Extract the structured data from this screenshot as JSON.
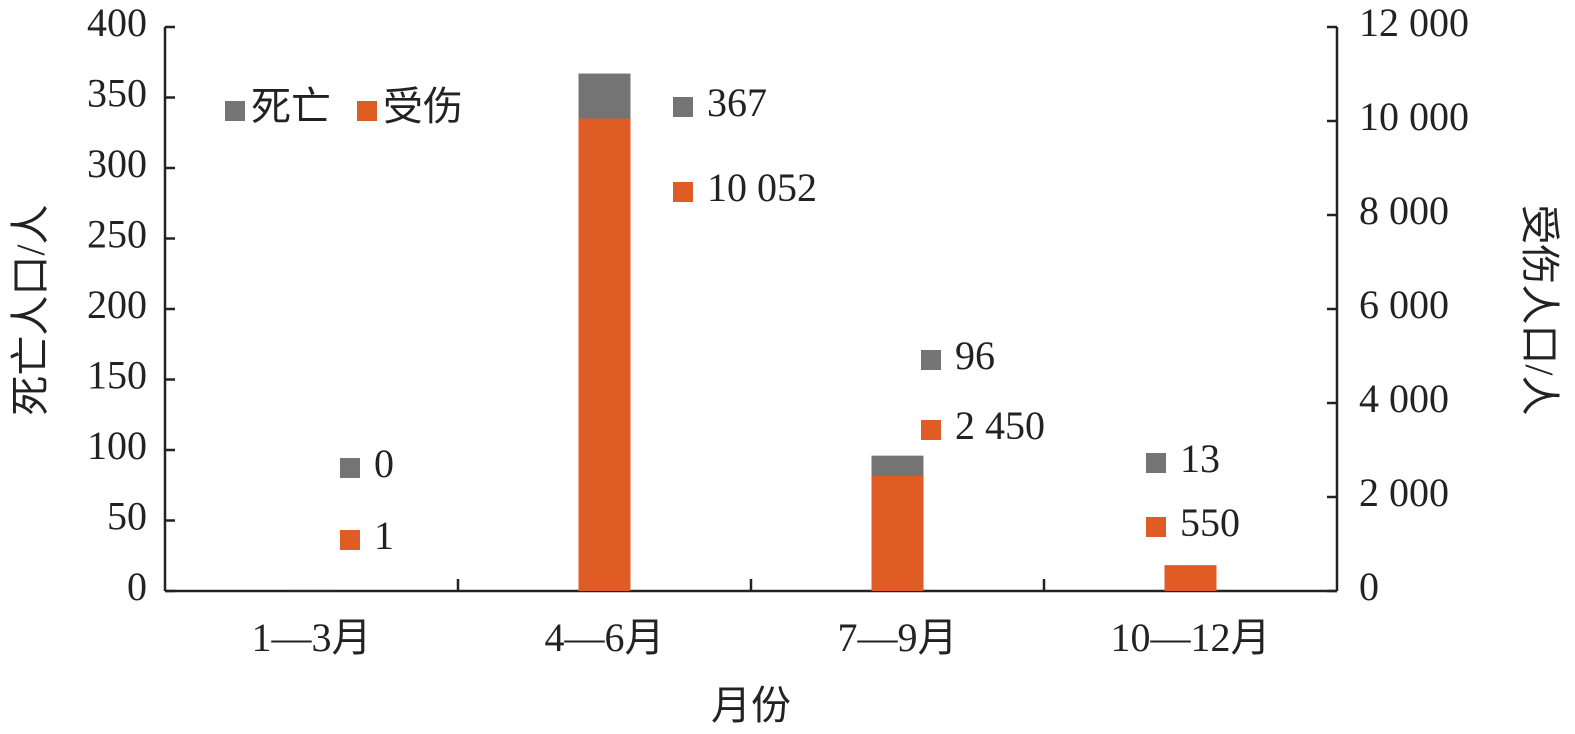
{
  "chart_data": {
    "type": "bar",
    "x_label": "月份",
    "y_label": "死亡人口/人",
    "y2_label": "受伤人口/人",
    "categories": [
      "1—3月",
      "4—6月",
      "7—9月",
      "10—12月"
    ],
    "series": [
      {
        "name": "死亡",
        "color": "#747474",
        "values": [
          0,
          367,
          96,
          13
        ]
      },
      {
        "name": "受伤",
        "color": "#df5c24",
        "values": [
          1,
          10052,
          2450,
          550
        ],
        "value_labels": [
          "1",
          "10 052",
          "2 450",
          "550"
        ],
        "axis": "y2"
      }
    ],
    "ylim": [
      0,
      400
    ],
    "yticks": [
      0,
      50,
      100,
      150,
      200,
      250,
      300,
      350,
      400
    ],
    "y2lim": [
      0,
      12000
    ],
    "y2ticks": [
      0,
      {
        "value": 2000,
        "label": "2 000"
      },
      {
        "value": 4000,
        "label": "4 000"
      },
      {
        "value": 6000,
        "label": "6 000"
      },
      {
        "value": 8000,
        "label": "8 000"
      },
      {
        "value": 10000,
        "label": "10 000"
      },
      {
        "value": 12000,
        "label": "12 000"
      }
    ],
    "legend": "top-left"
  }
}
